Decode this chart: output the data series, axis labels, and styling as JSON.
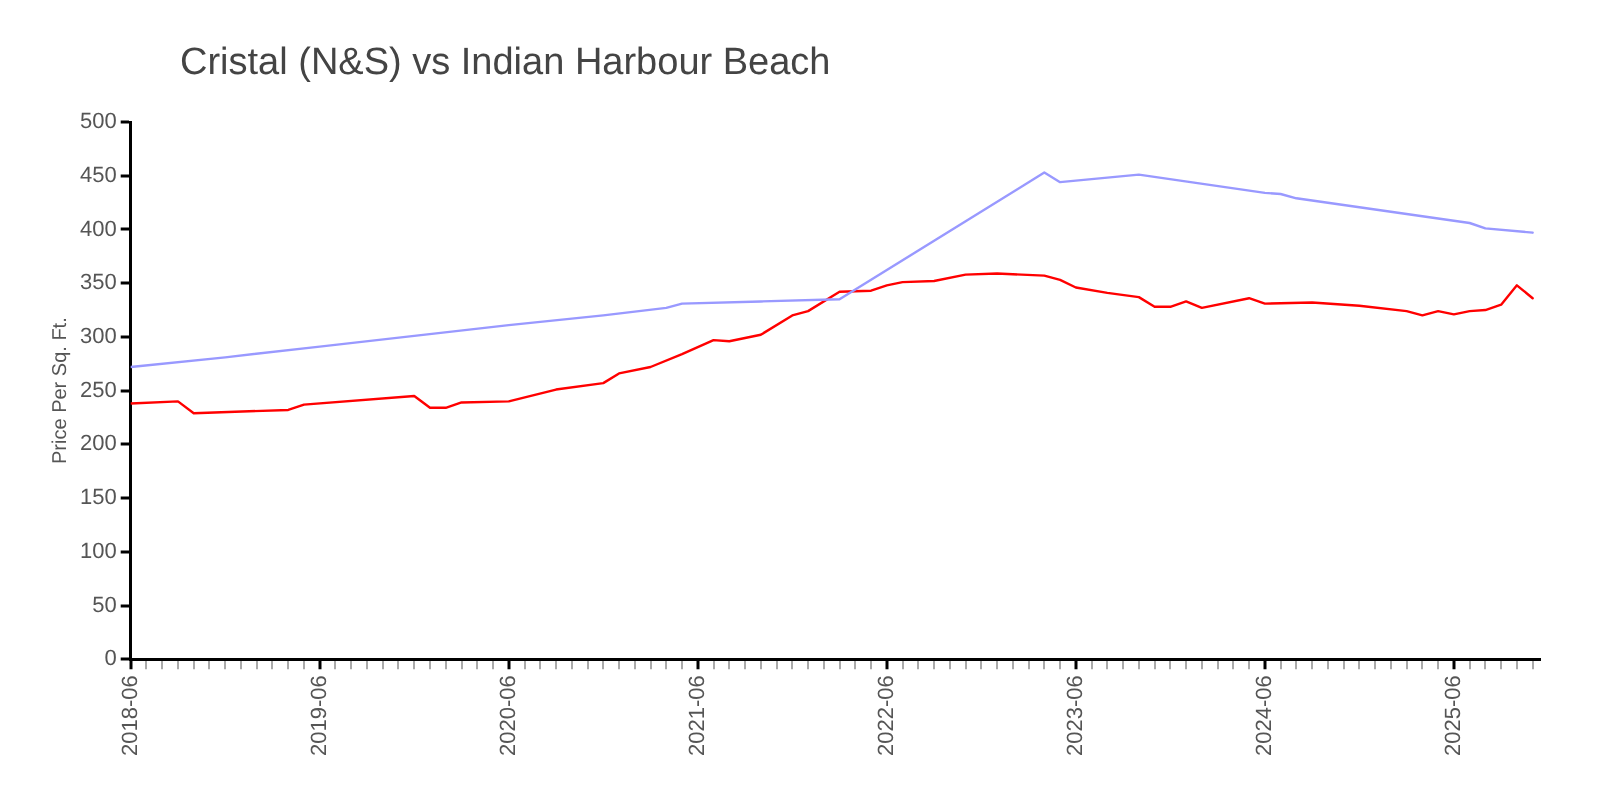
{
  "chart_data": {
    "type": "line",
    "title": "Cristal (N&S) vs Indian Harbour Beach",
    "ylabel": "Price Per Sq. Ft.",
    "xlim": [
      "2018-06",
      "2025-11-15"
    ],
    "xticks": [
      "2018-06",
      {
        "value": "2018-07",
        "label": null
      },
      {
        "value": "2018-08",
        "label": null
      },
      {
        "value": "2018-09",
        "label": null
      },
      {
        "value": "2018-10",
        "label": null
      },
      {
        "value": "2018-11",
        "label": null
      },
      {
        "value": "2018-12",
        "label": null
      },
      {
        "value": "2019-01",
        "label": null
      },
      {
        "value": "2019-02",
        "label": null
      },
      {
        "value": "2019-03",
        "label": null
      },
      {
        "value": "2019-04",
        "label": null
      },
      {
        "value": "2019-05",
        "label": null
      },
      "2019-06",
      {
        "value": "2019-07",
        "label": null
      },
      {
        "value": "2019-08",
        "label": null
      },
      {
        "value": "2019-09",
        "label": null
      },
      {
        "value": "2019-10",
        "label": null
      },
      {
        "value": "2019-11",
        "label": null
      },
      {
        "value": "2019-12",
        "label": null
      },
      {
        "value": "2020-01",
        "label": null
      },
      {
        "value": "2020-02",
        "label": null
      },
      {
        "value": "2020-03",
        "label": null
      },
      {
        "value": "2020-04",
        "label": null
      },
      {
        "value": "2020-05",
        "label": null
      },
      "2020-06",
      {
        "value": "2020-07",
        "label": null
      },
      {
        "value": "2020-08",
        "label": null
      },
      {
        "value": "2020-09",
        "label": null
      },
      {
        "value": "2020-10",
        "label": null
      },
      {
        "value": "2020-11",
        "label": null
      },
      {
        "value": "2020-12",
        "label": null
      },
      {
        "value": "2021-01",
        "label": null
      },
      {
        "value": "2021-02",
        "label": null
      },
      {
        "value": "2021-03",
        "label": null
      },
      {
        "value": "2021-04",
        "label": null
      },
      {
        "value": "2021-05",
        "label": null
      },
      "2021-06",
      {
        "value": "2021-07",
        "label": null
      },
      {
        "value": "2021-08",
        "label": null
      },
      {
        "value": "2021-09",
        "label": null
      },
      {
        "value": "2021-10",
        "label": null
      },
      {
        "value": "2021-11",
        "label": null
      },
      {
        "value": "2021-12",
        "label": null
      },
      {
        "value": "2022-01",
        "label": null
      },
      {
        "value": "2022-02",
        "label": null
      },
      {
        "value": "2022-03",
        "label": null
      },
      {
        "value": "2022-04",
        "label": null
      },
      {
        "value": "2022-05",
        "label": null
      },
      "2022-06",
      {
        "value": "2022-07",
        "label": null
      },
      {
        "value": "2022-08",
        "label": null
      },
      {
        "value": "2022-09",
        "label": null
      },
      {
        "value": "2022-10",
        "label": null
      },
      {
        "value": "2022-11",
        "label": null
      },
      {
        "value": "2022-12",
        "label": null
      },
      {
        "value": "2023-01",
        "label": null
      },
      {
        "value": "2023-02",
        "label": null
      },
      {
        "value": "2023-03",
        "label": null
      },
      {
        "value": "2023-04",
        "label": null
      },
      {
        "value": "2023-05",
        "label": null
      },
      "2023-06",
      {
        "value": "2023-07",
        "label": null
      },
      {
        "value": "2023-08",
        "label": null
      },
      {
        "value": "2023-09",
        "label": null
      },
      {
        "value": "2023-10",
        "label": null
      },
      {
        "value": "2023-11",
        "label": null
      },
      {
        "value": "2023-12",
        "label": null
      },
      {
        "value": "2024-01",
        "label": null
      },
      {
        "value": "2024-02",
        "label": null
      },
      {
        "value": "2024-03",
        "label": null
      },
      {
        "value": "2024-04",
        "label": null
      },
      {
        "value": "2024-05",
        "label": null
      },
      "2024-06",
      {
        "value": "2024-07",
        "label": null
      },
      {
        "value": "2024-08",
        "label": null
      },
      {
        "value": "2024-09",
        "label": null
      },
      {
        "value": "2024-10",
        "label": null
      },
      {
        "value": "2024-11",
        "label": null
      },
      {
        "value": "2024-12",
        "label": null
      },
      {
        "value": "2025-01",
        "label": null
      },
      {
        "value": "2025-02",
        "label": null
      },
      {
        "value": "2025-03",
        "label": null
      },
      {
        "value": "2025-04",
        "label": null
      },
      {
        "value": "2025-05",
        "label": null
      },
      "2025-06",
      {
        "value": "2025-07",
        "label": null
      },
      {
        "value": "2025-08",
        "label": null
      },
      {
        "value": "2025-09",
        "label": null
      },
      {
        "value": "2025-10",
        "label": null
      },
      {
        "value": "2025-11",
        "label": null
      }
    ],
    "ylim": [
      0,
      500
    ],
    "yticks": [
      0,
      50,
      100,
      150,
      200,
      250,
      300,
      350,
      400,
      450,
      500
    ],
    "series": [
      {
        "color": "#9999ff",
        "x": [
          "2018-06",
          "2018-12",
          "2019-06",
          "2019-12",
          "2020-06",
          "2020-12",
          "2021-04",
          "2021-05",
          "2021-10",
          "2022-03",
          "2023-04",
          "2023-05",
          "2023-10",
          "2024-06",
          "2024-07",
          "2024-08",
          "2025-07",
          "2025-08",
          "2025-11"
        ],
        "values": [
          272,
          281,
          291,
          301,
          311,
          320,
          327,
          331,
          333,
          335,
          453,
          444,
          451,
          434,
          433,
          429,
          406,
          401,
          397
        ]
      },
      {
        "color": "#ff0000",
        "x": [
          "2018-06",
          "2018-09",
          "2018-10",
          "2019-04",
          "2019-05",
          "2019-12",
          "2020-01",
          "2020-02",
          "2020-03",
          "2020-06",
          "2020-09",
          "2020-12",
          "2021-01",
          "2021-03",
          "2021-05",
          "2021-07",
          "2021-08",
          "2021-10",
          "2021-12",
          "2022-01",
          "2022-03",
          "2022-05",
          "2022-06",
          "2022-07",
          "2022-09",
          "2022-11",
          "2023-01",
          "2023-04",
          "2023-05",
          "2023-06",
          "2023-08",
          "2023-10",
          "2023-11",
          "2023-12",
          "2024-01",
          "2024-02",
          "2024-05",
          "2024-06",
          "2024-09",
          "2024-12",
          "2025-03",
          "2025-04",
          "2025-05",
          "2025-06",
          "2025-07",
          "2025-08",
          "2025-09",
          "2025-10",
          "2025-11"
        ],
        "values": [
          238,
          240,
          229,
          232,
          237,
          245,
          234,
          234,
          239,
          240,
          251,
          257,
          266,
          272,
          284,
          297,
          296,
          302,
          320,
          324,
          342,
          343,
          348,
          351,
          352,
          358,
          359,
          357,
          353,
          346,
          341,
          337,
          328,
          328,
          333,
          327,
          336,
          331,
          332,
          329,
          324,
          320,
          324,
          321,
          324,
          325,
          330,
          348,
          336
        ]
      }
    ]
  }
}
